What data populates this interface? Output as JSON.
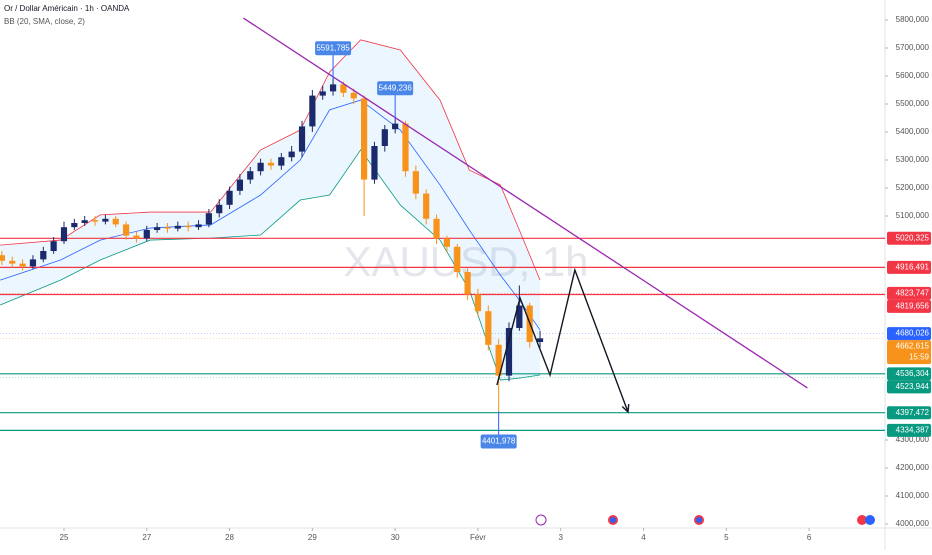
{
  "chart_data": {
    "type": "candlestick",
    "title": "Or / Dollar Américain · 1h · OANDA",
    "indicator": "BB (20, SMA, close, 2)",
    "watermark": "XAUUSD, 1h",
    "up_color": "#1b2a6b",
    "down_color": "#f7931a",
    "xlim": [
      -18.55,
      238
    ],
    "ylim": [
      4000,
      5800
    ],
    "xticks": [
      {
        "value": 0,
        "label": "25"
      },
      {
        "value": 24,
        "label": "27"
      },
      {
        "value": 48,
        "label": "28"
      },
      {
        "value": 72,
        "label": "29"
      },
      {
        "value": 96,
        "label": "30"
      },
      {
        "value": 120,
        "label": "Févr"
      },
      {
        "value": 144,
        "label": "3"
      },
      {
        "value": 168,
        "label": "4"
      },
      {
        "value": 192,
        "label": "5"
      },
      {
        "value": 216,
        "label": "6"
      }
    ],
    "yticks": [
      {
        "value": 5800,
        "label": "5800,000"
      },
      {
        "value": 5700,
        "label": "5700,000"
      },
      {
        "value": 5600,
        "label": "5600,000"
      },
      {
        "value": 5500,
        "label": "5500,000"
      },
      {
        "value": 5400,
        "label": "5400,000"
      },
      {
        "value": 5300,
        "label": "5300,000"
      },
      {
        "value": 5200,
        "label": "5200,000"
      },
      {
        "value": 5100,
        "label": "5100,000"
      },
      {
        "value": 4300,
        "label": "4300,000"
      },
      {
        "value": 4200,
        "label": "4200,000"
      },
      {
        "value": 4100,
        "label": "4100,000"
      },
      {
        "value": 4000,
        "label": "4000,000"
      }
    ],
    "x": [
      -18,
      -15,
      -12,
      -9,
      -6,
      -3,
      0,
      3,
      6,
      9,
      12,
      15,
      18,
      21,
      24,
      27,
      30,
      33,
      36,
      39,
      42,
      45,
      48,
      51,
      54,
      57,
      60,
      63,
      66,
      69,
      72,
      75,
      78,
      81,
      84,
      87,
      90,
      93,
      96,
      99,
      102,
      105,
      108,
      111,
      114,
      117,
      120,
      123,
      126,
      129,
      132,
      135,
      138
    ],
    "open": [
      4960,
      4940,
      4930,
      4920,
      4945,
      4975,
      5010,
      5060,
      5075,
      5085,
      5080,
      5090,
      5070,
      5030,
      5020,
      5050,
      5060,
      5055,
      5065,
      5060,
      5070,
      5110,
      5140,
      5190,
      5230,
      5260,
      5290,
      5280,
      5310,
      5330,
      5420,
      5530,
      5545,
      5570,
      5540,
      5520,
      5230,
      5350,
      5410,
      5430,
      5260,
      5180,
      5090,
      5020,
      4990,
      4900,
      4820,
      4760,
      4640,
      4530,
      4700,
      4780,
      4650
    ],
    "high": [
      4975,
      4955,
      4945,
      4960,
      4990,
      5025,
      5080,
      5090,
      5100,
      5100,
      5105,
      5100,
      5080,
      5045,
      5065,
      5075,
      5075,
      5080,
      5080,
      5085,
      5125,
      5160,
      5205,
      5250,
      5275,
      5305,
      5305,
      5325,
      5350,
      5440,
      5550,
      5565,
      5592,
      5580,
      5555,
      5530,
      5365,
      5425,
      5449,
      5440,
      5280,
      5195,
      5105,
      5030,
      5000,
      4915,
      4840,
      4780,
      4660,
      4720,
      4852,
      4790,
      4690
    ],
    "low": [
      4925,
      4915,
      4905,
      4910,
      4935,
      4965,
      5000,
      5050,
      5065,
      5065,
      5070,
      5060,
      5015,
      5005,
      5010,
      5040,
      5040,
      5045,
      5045,
      5050,
      5060,
      5095,
      5125,
      5175,
      5215,
      5245,
      5265,
      5265,
      5295,
      5310,
      5400,
      5515,
      5530,
      5525,
      5500,
      5100,
      5215,
      5330,
      5395,
      5240,
      5160,
      5070,
      5000,
      4970,
      4880,
      4800,
      4740,
      4620,
      4402,
      4510,
      4690,
      4630,
      4630
    ],
    "close": [
      4940,
      4930,
      4920,
      4945,
      4975,
      5010,
      5060,
      5075,
      5085,
      5080,
      5090,
      5070,
      5030,
      5020,
      5050,
      5060,
      5055,
      5065,
      5060,
      5070,
      5110,
      5140,
      5190,
      5230,
      5260,
      5290,
      5280,
      5310,
      5330,
      5420,
      5530,
      5545,
      5570,
      5540,
      5520,
      5230,
      5350,
      5410,
      5430,
      5260,
      5180,
      5090,
      5020,
      4990,
      4900,
      4820,
      4760,
      4640,
      4530,
      4700,
      4780,
      4650,
      4663
    ],
    "bands": {
      "x": [
        -18.5,
        -1,
        10.5,
        25,
        42.5,
        57,
        68.5,
        77,
        86,
        97.5,
        109,
        117.5,
        126.5,
        132,
        138
      ],
      "upper": [
        4996,
        5014,
        5104,
        5114,
        5114,
        5336,
        5407,
        5614,
        5729,
        5693,
        5514,
        5264,
        5211,
        5050,
        4871
      ],
      "basis": [
        4871,
        4943,
        5014,
        5057,
        5068,
        5175,
        5300,
        5479,
        5514,
        5407,
        5211,
        5050,
        4889,
        4800,
        4693
      ],
      "lower": [
        4782,
        4871,
        4943,
        5014,
        5021,
        5032,
        5157,
        5175,
        5336,
        5139,
        5014,
        4836,
        4514,
        4521,
        4532
      ]
    },
    "levels": [
      {
        "value": 5020.325,
        "label": "5020,325",
        "color": "#f23645",
        "line": true
      },
      {
        "value": 4916.491,
        "label": "4916,491",
        "color": "#f23645",
        "line": true
      },
      {
        "value": 4823.747,
        "label": "4823,747",
        "color": "#f23645",
        "line": false
      },
      {
        "value": 4819.656,
        "label": "4819,656",
        "color": "#f23645",
        "line": true
      },
      {
        "value": 4680.026,
        "label": "4680,026",
        "color": "#2962ff",
        "line": false
      },
      {
        "value": 4662.615,
        "label": "4662,615",
        "color": "#f7931a",
        "line": false
      },
      {
        "value": 4536.304,
        "label": "4536,304",
        "color": "#089981",
        "line": true
      },
      {
        "value": 4523.944,
        "label": "4523,944",
        "color": "#089981",
        "line": false
      },
      {
        "value": 4397.472,
        "label": "4397,472",
        "color": "#089981",
        "line": true
      },
      {
        "value": 4334.387,
        "label": "4334,387",
        "color": "#089981",
        "line": true
      }
    ],
    "countdown": "15:59",
    "annotations": [
      {
        "x": 78,
        "value": 5591.785,
        "label": "5591,785"
      },
      {
        "x": 96,
        "value": 5449.236,
        "label": "5449,236"
      },
      {
        "x": 126,
        "value": 4401.978,
        "label": "4401,978"
      }
    ],
    "trendline": {
      "x": [
        52,
        215.5
      ],
      "y": [
        5807,
        4486
      ]
    },
    "projection": {
      "x": [
        125.5,
        132.2,
        140.9,
        148.1,
        163.5
      ],
      "y": [
        4496,
        4807,
        4532,
        4907,
        4400
      ]
    }
  }
}
